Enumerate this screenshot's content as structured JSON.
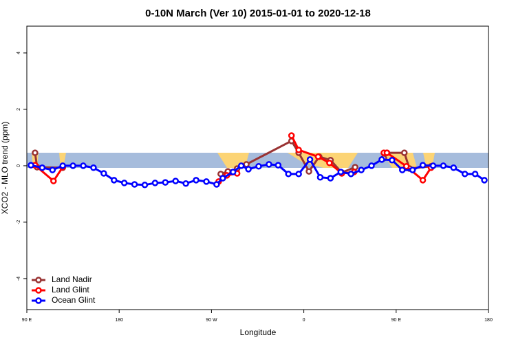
{
  "chart_data": {
    "type": "line",
    "title": "0-10N March (Ver 10)   2015-01-01 to 2020-12-18",
    "xlabel": "Longitude",
    "ylabel": "XCO2 - MLO trend (ppm)",
    "xlim": [
      90,
      540
    ],
    "ylim": [
      -5.1,
      4.95
    ],
    "xticks": [
      {
        "value": 90,
        "label": "90 E"
      },
      180,
      {
        "value": 270,
        "label": "90 W"
      },
      {
        "value": 360,
        "label": "0"
      },
      {
        "value": 450,
        "label": "90 E"
      },
      {
        "value": 540,
        "label": "180"
      }
    ],
    "yticks": [
      -4,
      -2,
      0,
      2,
      4
    ],
    "legend": "bottom-left",
    "series": [
      {
        "name": "Land Nadir",
        "color": "#993333",
        "x": [
          98,
          100,
          125,
          200,
          279,
          286,
          295,
          304,
          348,
          355,
          365,
          375,
          386,
          397,
          410,
          420,
          438,
          441,
          458,
          463,
          484
        ],
        "values": [
          0.46,
          -0.05,
          -0.07,
          null,
          -0.29,
          -0.2,
          -0.1,
          0.05,
          0.88,
          0.46,
          -0.2,
          0.32,
          0.2,
          -0.24,
          -0.05,
          null,
          0.27,
          0.46,
          0.46,
          -0.1,
          -0.02
        ]
      },
      {
        "name": "Land Glint",
        "color": "#ff0000",
        "x": [
          98,
          116,
          125,
          200,
          277,
          285,
          295,
          320,
          348,
          355,
          374,
          385,
          397,
          409,
          420,
          438,
          441,
          460,
          476,
          484
        ],
        "values": [
          0.02,
          -0.54,
          -0.05,
          null,
          -0.56,
          -0.34,
          -0.27,
          null,
          1.07,
          0.56,
          0.32,
          0.1,
          -0.27,
          -0.22,
          null,
          0.46,
          0.46,
          -0.02,
          -0.51,
          -0.07
        ]
      },
      {
        "name": "Ocean Glint",
        "color": "#0000ff",
        "x": [
          94,
          105,
          115,
          125,
          135,
          145,
          155,
          165,
          175,
          185,
          195,
          205,
          215,
          225,
          235,
          245,
          255,
          265,
          275,
          281,
          291,
          299,
          306,
          316,
          326,
          335,
          345,
          355,
          366,
          376,
          386,
          396,
          406,
          416,
          426,
          436,
          446,
          456,
          466,
          476,
          486,
          496,
          506,
          517,
          527,
          536
        ],
        "values": [
          0.02,
          -0.07,
          -0.15,
          0,
          0,
          0,
          -0.07,
          -0.27,
          -0.51,
          -0.61,
          -0.66,
          -0.68,
          -0.61,
          -0.59,
          -0.54,
          -0.63,
          -0.51,
          -0.56,
          -0.66,
          -0.44,
          -0.22,
          0,
          -0.12,
          -0.02,
          0.05,
          0.02,
          -0.29,
          -0.29,
          0.22,
          -0.41,
          -0.44,
          -0.22,
          -0.29,
          -0.15,
          0,
          0.22,
          0.2,
          -0.15,
          -0.15,
          0.02,
          0,
          0,
          -0.07,
          -0.29,
          -0.29,
          -0.51
        ]
      }
    ]
  }
}
